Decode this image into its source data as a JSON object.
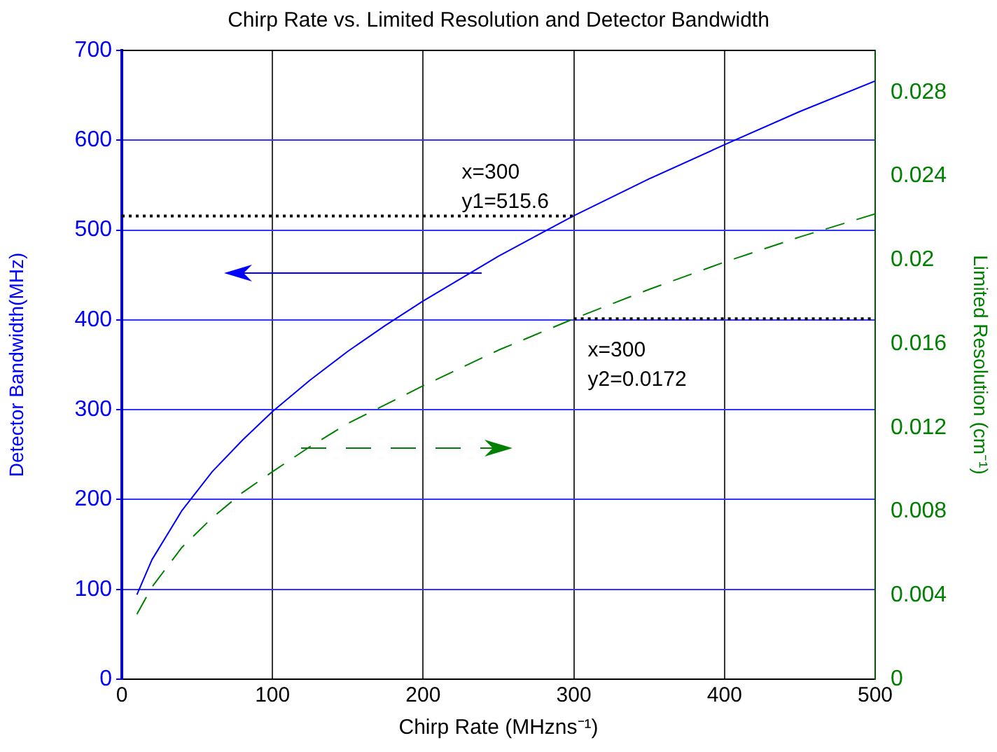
{
  "chart_data": {
    "type": "line",
    "title": "Chirp Rate vs. Limited Resolution and Detector Bandwidth",
    "xlabel": "Chirp Rate (MHzns⁻¹)",
    "ylabel": "Detector Bandwidth(MHz)",
    "y2label": "Limited Resolution (cm⁻¹)",
    "x": [
      10,
      20,
      40,
      60,
      80,
      100,
      125,
      150,
      175,
      200,
      250,
      300,
      350,
      400,
      450,
      500
    ],
    "series": [
      {
        "color": "#0000ff",
        "line_style": "solid",
        "values": [
          94,
          133,
          188,
          231,
          266,
          298,
          333,
          365,
          394,
          421,
          471,
          516,
          557,
          595,
          632,
          666
        ]
      },
      {
        "color": "#008000",
        "line_style": "dashed",
        "axis": "y2",
        "values": [
          0.0031,
          0.0044,
          0.0063,
          0.0077,
          0.0089,
          0.0099,
          0.0111,
          0.0122,
          0.0131,
          0.014,
          0.0157,
          0.0172,
          0.0186,
          0.0199,
          0.0211,
          0.0222
        ]
      }
    ],
    "xlim": [
      0,
      500
    ],
    "xticks": [
      0,
      100,
      200,
      300,
      400,
      500
    ],
    "ylim": [
      0,
      700
    ],
    "yticks": [
      0,
      100,
      200,
      300,
      400,
      500,
      600,
      700
    ],
    "y2lim": [
      0,
      0.03
    ],
    "y2ticks": [
      0,
      0.004,
      0.008,
      0.012,
      0.016,
      0.02,
      0.024,
      0.028
    ],
    "ref_lines": [
      {
        "axis": "y",
        "value": 515.6,
        "line_style": "dotted",
        "color": "#000000"
      },
      {
        "axis": "y2",
        "value": 0.0172,
        "line_style": "dotted",
        "color": "#000000"
      }
    ],
    "annotations": [
      {
        "text": "x=300\ny1=515.6",
        "x": 300,
        "y": 515.6
      },
      {
        "text": "x=300\ny2=0.0172",
        "x": 300,
        "y": 400
      }
    ],
    "grid": true,
    "legend": false,
    "marker": "none"
  }
}
